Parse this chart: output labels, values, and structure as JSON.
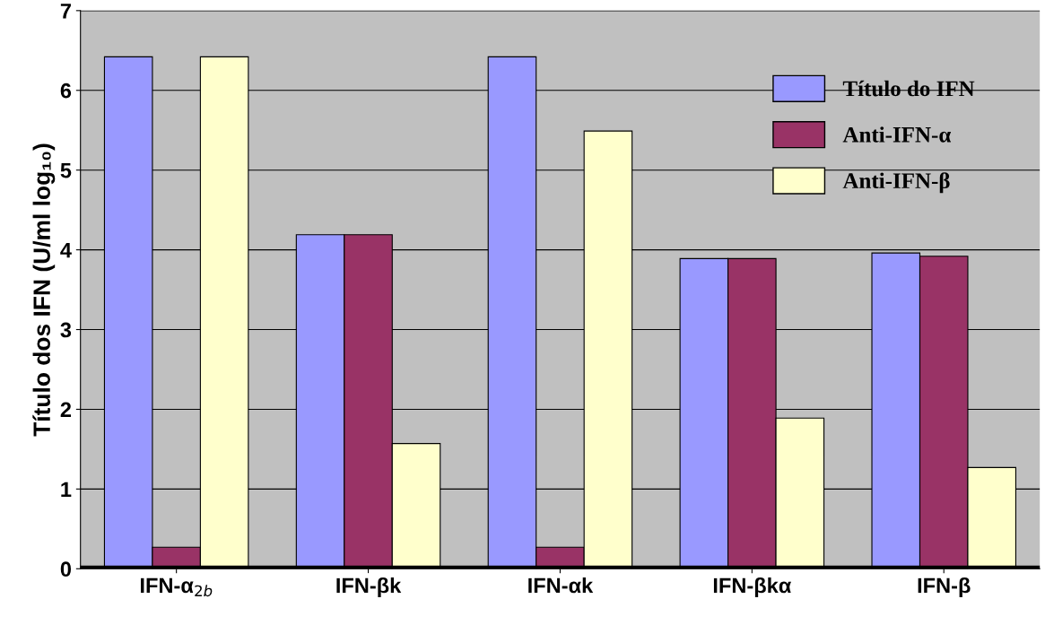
{
  "chart_data": {
    "type": "bar",
    "ylabel": "Título dos IFN (U/ml log₁₀)",
    "categories": [
      "IFN-α$_{2b}$",
      "IFN-βk",
      "IFN-αk",
      "IFN-βkα",
      "IFN-β"
    ],
    "series": [
      {
        "name": "Título do IFN",
        "color": "#9999ff",
        "values": [
          6.42,
          4.19,
          6.42,
          3.89,
          3.96
        ]
      },
      {
        "name": "Anti-IFN-α",
        "color": "#993366",
        "values": [
          0.27,
          4.19,
          0.27,
          3.89,
          3.92
        ]
      },
      {
        "name": "Anti-IFN-β",
        "color": "#ffffcc",
        "values": [
          6.42,
          1.57,
          5.49,
          1.89,
          1.27
        ]
      }
    ],
    "ylim": [
      0,
      7
    ],
    "yticks": [
      0,
      1,
      2,
      3,
      4,
      5,
      6,
      7
    ],
    "grid": "y",
    "legend": "top right"
  }
}
